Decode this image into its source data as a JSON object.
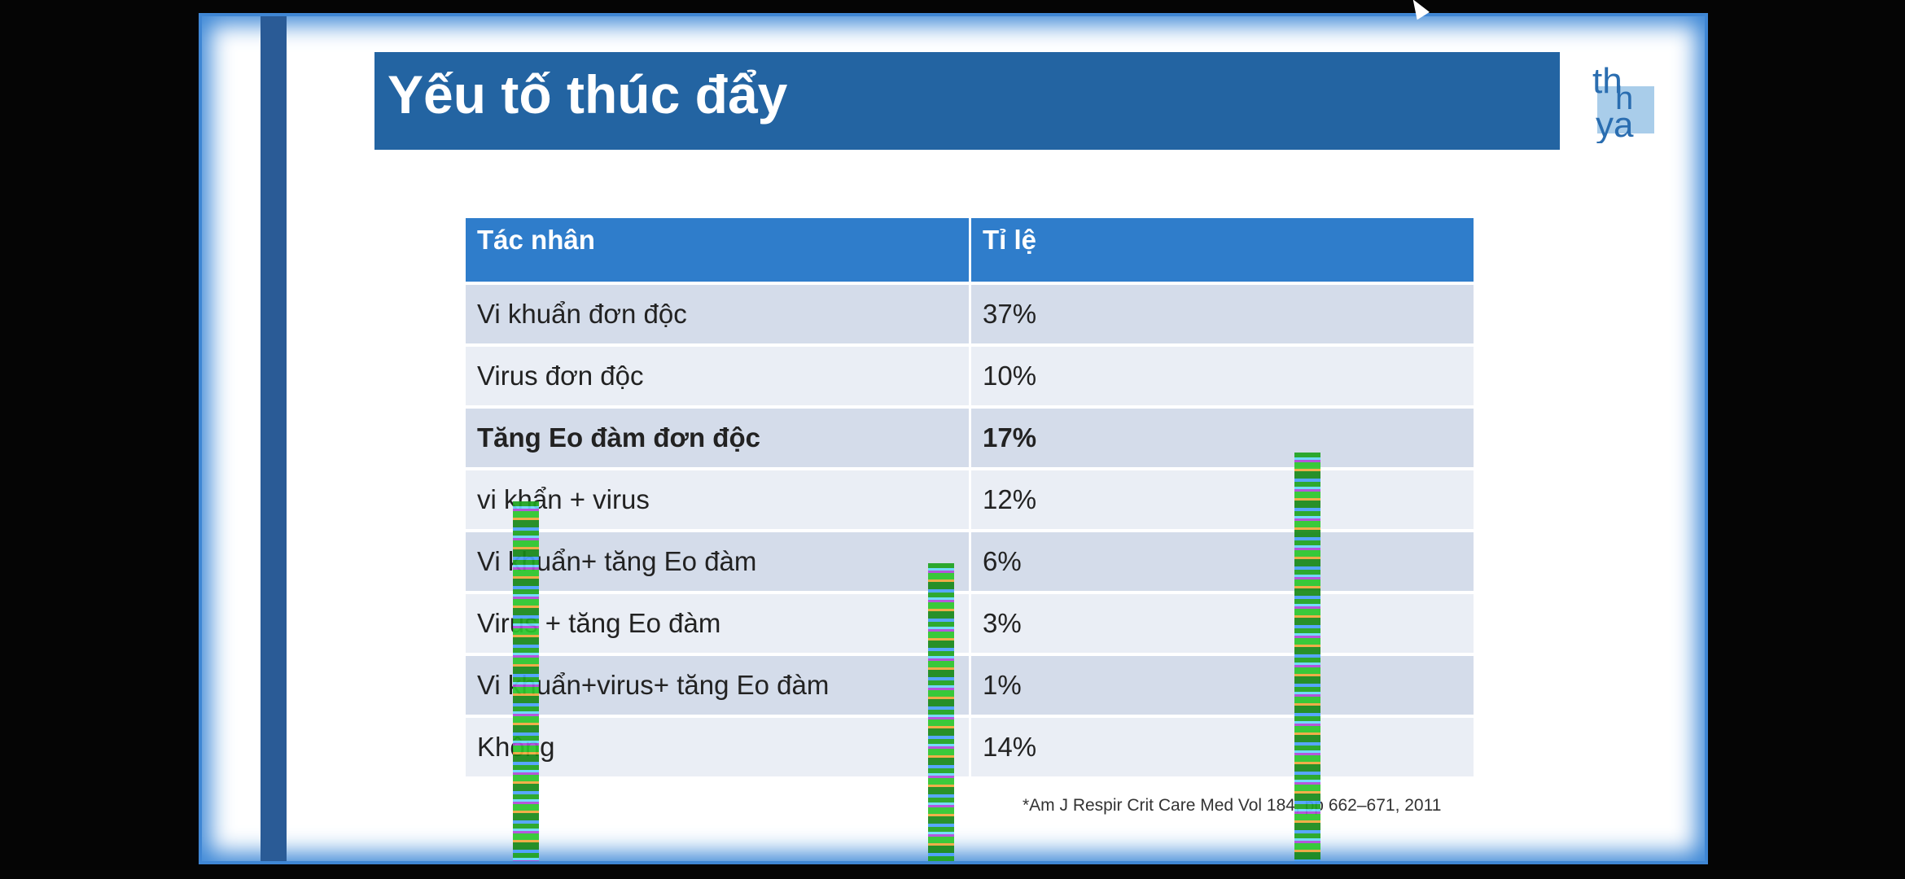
{
  "slide": {
    "title": "Yếu tố thúc đẩy",
    "logo_text": "thhgya",
    "footnote": "*Am J Respir Crit Care Med Vol 184, pp 662–671, 2011"
  },
  "table": {
    "headers": [
      "Tác nhân",
      "Tỉ lệ"
    ],
    "rows": [
      {
        "agent": "Vi khuẩn đơn độc",
        "rate": "37%",
        "bold": false
      },
      {
        "agent": "Virus đơn độc",
        "rate": "10%",
        "bold": false
      },
      {
        "agent": "Tăng Eo đàm đơn độc",
        "rate": "17%",
        "bold": true
      },
      {
        "agent": "vi khẩn + virus",
        "rate": "12%",
        "bold": false
      },
      {
        "agent": "Vi khuẩn+ tăng Eo đàm",
        "rate": "6%",
        "bold": false
      },
      {
        "agent": "Virus + tăng Eo đàm",
        "rate": "3%",
        "bold": false
      },
      {
        "agent": "Vi khuẩn+virus+ tăng Eo đàm",
        "rate": "1%",
        "bold": false
      },
      {
        "agent": "Không",
        "rate": "14%",
        "bold": false
      }
    ]
  },
  "colors": {
    "title_bar": "#2364a2",
    "header_row": "#2f7dcb",
    "row_dark": "#d4dcea",
    "row_light": "#eaeef5",
    "frame_glow": "#3a86d6"
  }
}
